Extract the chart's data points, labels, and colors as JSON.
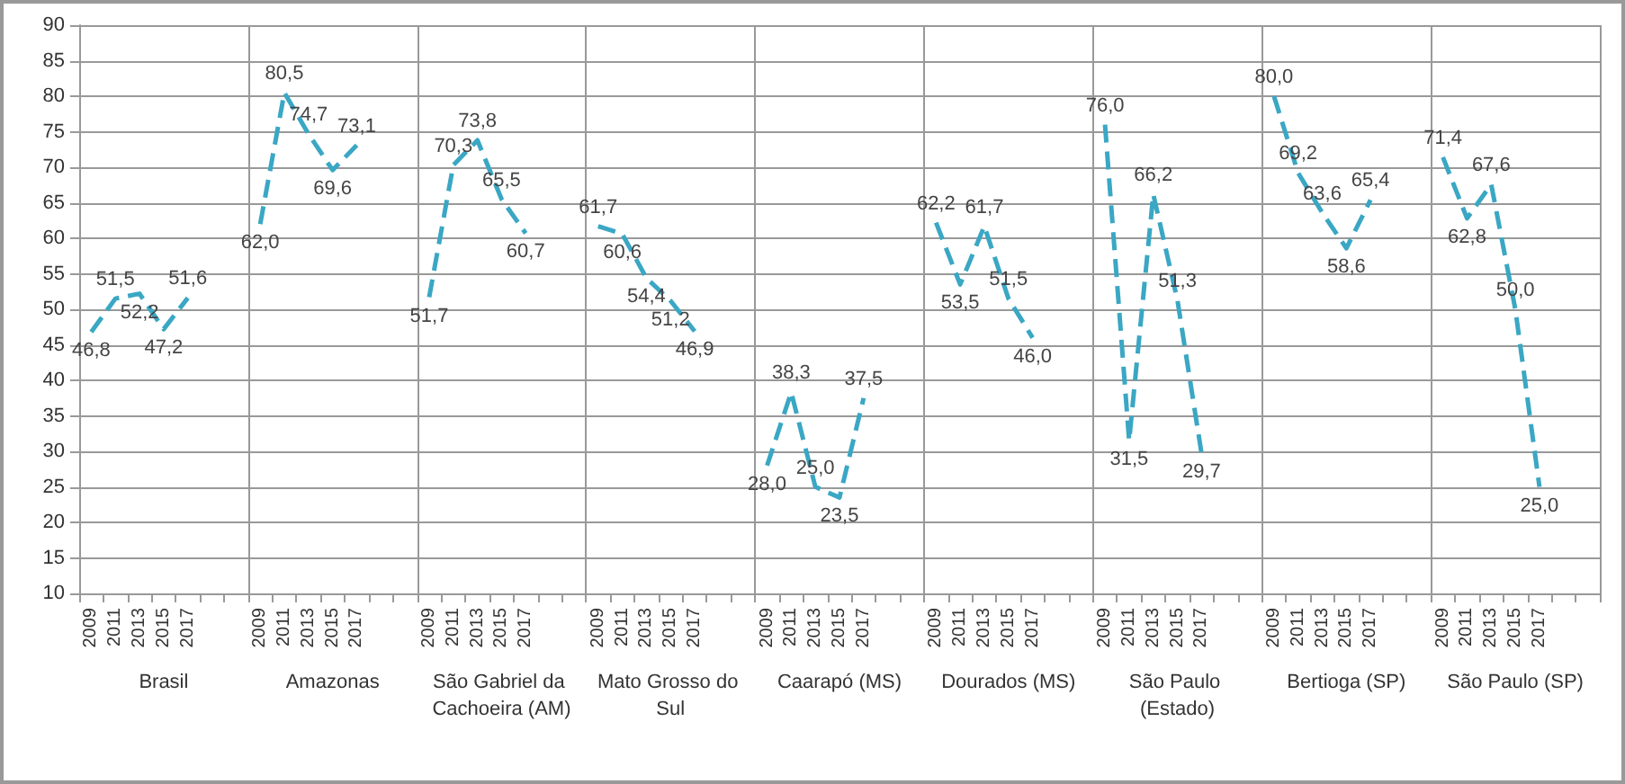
{
  "chart_data": {
    "type": "line",
    "categories": [
      "2009",
      "2011",
      "2013",
      "2015",
      "2017",
      null,
      null,
      "2009",
      "2011",
      "2013",
      "2015",
      "2017",
      null,
      null,
      "2009",
      "2011",
      "2013",
      "2015",
      "2017",
      null,
      null,
      "2009",
      "2011",
      "2013",
      "2015",
      "2017",
      null,
      null,
      "2009",
      "2011",
      "2013",
      "2015",
      "2017",
      null,
      null,
      "2009",
      "2011",
      "2013",
      "2015",
      "2017",
      null,
      null,
      "2009",
      "2011",
      "2013",
      "2015",
      "2017",
      null,
      null,
      "2009",
      "2011",
      "2013",
      "2015",
      "2017",
      null,
      null,
      "2009",
      "2011",
      "2013",
      "2015",
      "2017",
      null,
      null
    ],
    "series": [
      {
        "color": "#3aa7c4",
        "values": [
          46.8,
          51.5,
          52.2,
          47.2,
          51.6,
          null,
          null,
          62.0,
          80.5,
          74.7,
          69.6,
          73.1,
          null,
          null,
          51.7,
          70.3,
          73.8,
          65.5,
          60.7,
          null,
          null,
          61.7,
          60.6,
          54.4,
          51.2,
          46.9,
          null,
          null,
          28.0,
          38.3,
          25.0,
          23.5,
          37.5,
          null,
          null,
          62.2,
          53.5,
          61.7,
          51.5,
          46.0,
          null,
          null,
          76.0,
          31.5,
          66.2,
          51.3,
          29.7,
          null,
          null,
          80.0,
          69.2,
          63.6,
          58.6,
          65.4,
          null,
          null,
          71.4,
          62.8,
          67.6,
          50.0,
          25.0,
          null,
          null
        ],
        "value_labels": [
          "46,8",
          "51,5",
          "52,2",
          "47,2",
          "51,6",
          null,
          null,
          "62,0",
          "80,5",
          "74,7",
          "69,6",
          "73,1",
          null,
          null,
          "51,7",
          "70,3",
          "73,8",
          "65,5",
          "60,7",
          null,
          null,
          "61,7",
          "60,6",
          "54,4",
          "51,2",
          "46,9",
          null,
          null,
          "28,0",
          "38,3",
          "25,0",
          "23,5",
          "37,5",
          null,
          null,
          "62,2",
          "53,5",
          "61,7",
          "51,5",
          "46,0",
          null,
          null,
          "76,0",
          "31,5",
          "66,2",
          "51,3",
          "29,7",
          null,
          null,
          "80,0",
          "69,2",
          "63,6",
          "58,6",
          "65,4",
          null,
          null,
          "71,4",
          "62,8",
          "67,6",
          "50,0",
          "25,0",
          null,
          null
        ]
      }
    ],
    "annotations": [
      "Brasil",
      "Amazonas",
      "São Gabriel da Cachoeira (AM)",
      "Mato Grosso do Sul",
      "Caarapó (MS)",
      "Dourados (MS)",
      "São Paulo (Estado)",
      "Bertioga (SP)",
      "São Paulo (SP)"
    ],
    "ylim": [
      10,
      90
    ],
    "yticks": [
      10,
      15,
      20,
      25,
      30,
      35,
      40,
      45,
      50,
      55,
      60,
      65,
      70,
      75,
      80,
      85,
      90
    ],
    "grid": "y",
    "marker": "none",
    "line_style": "dashed"
  }
}
